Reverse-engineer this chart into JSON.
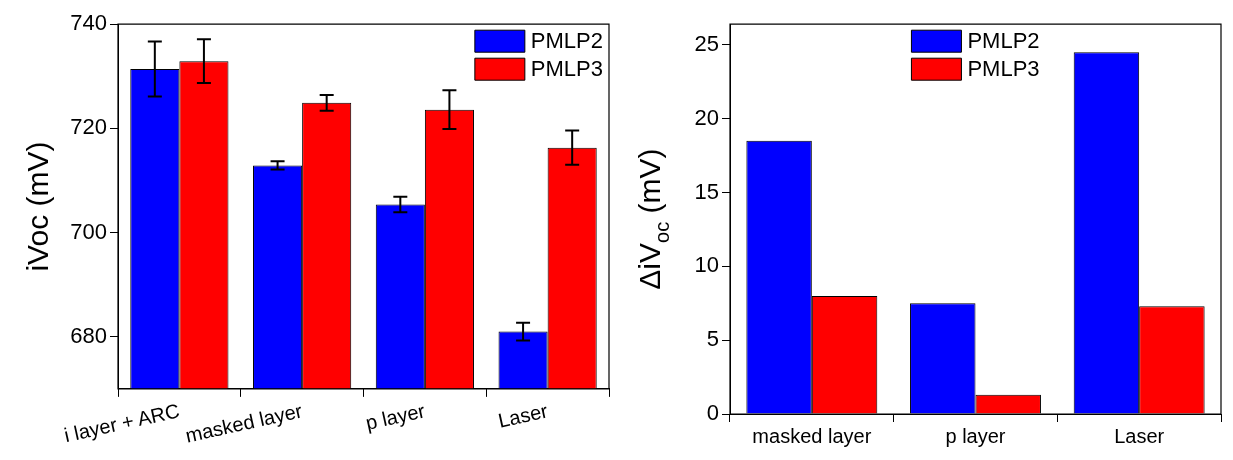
{
  "chart_data": [
    {
      "type": "bar",
      "ylabel": "iVoc (mV)",
      "categories": [
        "i layer + ARC",
        "masked layer",
        "p layer",
        "Laser"
      ],
      "ylim": [
        670,
        740
      ],
      "yticks": [
        680,
        700,
        720,
        740
      ],
      "grid": false,
      "legend": "top right",
      "series": [
        {
          "name": "PMLP2",
          "color": "#0000ff",
          "values": [
            731.4,
            712.9,
            705.4,
            681.0
          ],
          "errors": [
            5.3,
            0.8,
            1.5,
            1.7
          ]
        },
        {
          "name": "PMLP3",
          "color": "#ff0000",
          "values": [
            732.9,
            724.9,
            723.6,
            716.3
          ],
          "errors": [
            4.2,
            1.5,
            3.7,
            3.3
          ]
        }
      ]
    },
    {
      "type": "bar",
      "ylabel": "ΔiV$_{oc}$ (mV)",
      "categories": [
        "masked layer",
        "p layer",
        "Laser"
      ],
      "ylim": [
        0,
        26.4
      ],
      "yticks": [
        0,
        5,
        10,
        15,
        20,
        25
      ],
      "grid": false,
      "legend": "top",
      "series": [
        {
          "name": "PMLP2",
          "color": "#0000ff",
          "values": [
            18.5,
            7.5,
            24.5
          ]
        },
        {
          "name": "PMLP3",
          "color": "#ff0000",
          "values": [
            8.0,
            1.3,
            7.3
          ]
        }
      ]
    }
  ]
}
